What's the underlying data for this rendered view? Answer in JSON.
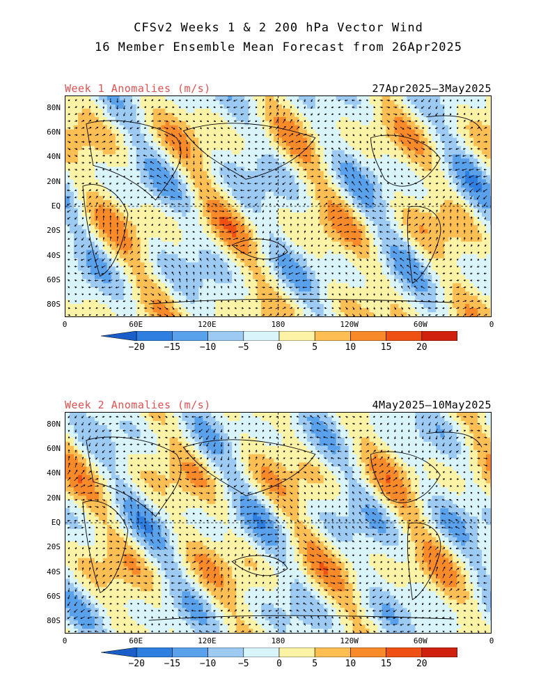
{
  "header": {
    "title_line1": "CFSv2 Weeks 1 & 2 200 hPa Vector Wind",
    "title_line2": "16 Member Ensemble Mean Forecast from 26Apr2025"
  },
  "panels": [
    {
      "label": "Week 1 Anomalies (m/s)",
      "dates": "27Apr2025—3May2025",
      "seed": 3
    },
    {
      "label": "Week 2 Anomalies (m/s)",
      "dates": "4May2025—10May2025",
      "seed": 11
    }
  ],
  "map": {
    "lat_labels": [
      "80N",
      "60N",
      "40N",
      "20N",
      "EQ",
      "20S",
      "40S",
      "60S",
      "80S"
    ],
    "lat_values": [
      80,
      60,
      40,
      20,
      0,
      -20,
      -40,
      -60,
      -80
    ],
    "lon_labels": [
      "0",
      "60E",
      "120E",
      "180",
      "120W",
      "60W",
      "0"
    ],
    "lon_values": [
      0,
      60,
      120,
      180,
      240,
      300,
      360
    ]
  },
  "colorbar": {
    "labels": [
      "−20",
      "−15",
      "−10",
      "−5",
      "0",
      "5",
      "10",
      "15",
      "20"
    ],
    "colors": [
      "#1a5fc9",
      "#2f7fe0",
      "#5aa1ec",
      "#9ccaf3",
      "#d9f4fb",
      "#fdf3a6",
      "#fdbf54",
      "#f98a2a",
      "#ef5114",
      "#d0210e",
      "#a51007"
    ]
  }
}
